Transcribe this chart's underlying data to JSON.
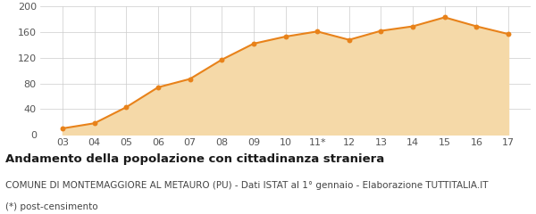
{
  "x_labels": [
    "03",
    "04",
    "05",
    "06",
    "07",
    "08",
    "09",
    "10",
    "11*",
    "12",
    "13",
    "14",
    "15",
    "16",
    "17"
  ],
  "x_numeric": [
    0,
    1,
    2,
    3,
    4,
    5,
    6,
    7,
    8,
    9,
    10,
    11,
    12,
    13,
    14
  ],
  "values": [
    10,
    18,
    43,
    74,
    87,
    117,
    142,
    153,
    161,
    148,
    162,
    169,
    183,
    169,
    157
  ],
  "line_color": "#E8821A",
  "fill_color": "#F5D9A8",
  "marker_color": "#E8821A",
  "bg_color": "#FFFFFF",
  "grid_color": "#CCCCCC",
  "ylim": [
    0,
    200
  ],
  "yticks": [
    0,
    40,
    80,
    120,
    160,
    200
  ],
  "title": "Andamento della popolazione con cittadinanza straniera",
  "subtitle": "COMUNE DI MONTEMAGGIORE AL METAURO (PU) - Dati ISTAT al 1° gennaio - Elaborazione TUTTITALIA.IT",
  "footnote": "(*) post-censimento",
  "tick_fontsize": 8.0,
  "title_fontsize": 9.5,
  "subtitle_fontsize": 7.5,
  "footnote_fontsize": 7.5
}
